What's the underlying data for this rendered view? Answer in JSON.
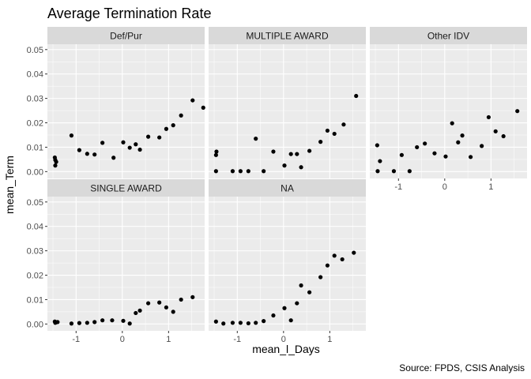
{
  "chart_data": {
    "type": "scatter",
    "title": "Average Termination Rate",
    "xlabel": "mean_l_Days",
    "ylabel": "mean_Term",
    "caption": "Source: FPDS, CSIS Analysis",
    "xlim": [
      -1.62,
      1.78
    ],
    "ylim": [
      -0.0028,
      0.0522
    ],
    "x_ticks": [
      -1,
      0,
      1
    ],
    "x_tick_labels": [
      "-1",
      "0",
      "1"
    ],
    "y_ticks": [
      0.0,
      0.01,
      0.02,
      0.03,
      0.04,
      0.05
    ],
    "y_tick_labels": [
      "0.00",
      "0.01",
      "0.02",
      "0.03",
      "0.04",
      "0.05"
    ],
    "grid": true,
    "point_color": "#000000",
    "panel_background": "#ebebeb",
    "strip_background": "#d9d9d9",
    "facets": [
      {
        "name": "Def/Pur",
        "points": [
          {
            "x": -1.46,
            "y": 0.0058
          },
          {
            "x": -1.45,
            "y": 0.0048
          },
          {
            "x": -1.45,
            "y": 0.0025
          },
          {
            "x": -1.43,
            "y": 0.004
          },
          {
            "x": -1.1,
            "y": 0.0148
          },
          {
            "x": -0.93,
            "y": 0.0088
          },
          {
            "x": -0.76,
            "y": 0.0073
          },
          {
            "x": -0.6,
            "y": 0.007
          },
          {
            "x": -0.43,
            "y": 0.0118
          },
          {
            "x": -0.19,
            "y": 0.0057
          },
          {
            "x": 0.02,
            "y": 0.012
          },
          {
            "x": 0.16,
            "y": 0.0098
          },
          {
            "x": 0.29,
            "y": 0.0112
          },
          {
            "x": 0.38,
            "y": 0.009
          },
          {
            "x": 0.56,
            "y": 0.0143
          },
          {
            "x": 0.8,
            "y": 0.014
          },
          {
            "x": 0.95,
            "y": 0.0175
          },
          {
            "x": 1.1,
            "y": 0.019
          },
          {
            "x": 1.27,
            "y": 0.023
          },
          {
            "x": 1.52,
            "y": 0.0292
          },
          {
            "x": 1.75,
            "y": 0.0262
          }
        ]
      },
      {
        "name": "MULTIPLE AWARD",
        "points": [
          {
            "x": -1.46,
            "y": 0.0068
          },
          {
            "x": -1.45,
            "y": 0.0082
          },
          {
            "x": -1.46,
            "y": 0.0002
          },
          {
            "x": -1.1,
            "y": 0.0002
          },
          {
            "x": -0.93,
            "y": 0.0002
          },
          {
            "x": -0.76,
            "y": 0.0002
          },
          {
            "x": -0.6,
            "y": 0.0135
          },
          {
            "x": -0.43,
            "y": 0.0002
          },
          {
            "x": -0.22,
            "y": 0.0082
          },
          {
            "x": 0.02,
            "y": 0.0025
          },
          {
            "x": 0.16,
            "y": 0.0072
          },
          {
            "x": 0.29,
            "y": 0.0072
          },
          {
            "x": 0.38,
            "y": 0.0018
          },
          {
            "x": 0.56,
            "y": 0.0085
          },
          {
            "x": 0.8,
            "y": 0.0122
          },
          {
            "x": 0.95,
            "y": 0.0168
          },
          {
            "x": 1.1,
            "y": 0.0155
          },
          {
            "x": 1.3,
            "y": 0.0193
          },
          {
            "x": 1.57,
            "y": 0.031
          }
        ]
      },
      {
        "name": "Other IDV",
        "points": [
          {
            "x": -1.46,
            "y": 0.0108
          },
          {
            "x": -1.45,
            "y": 0.0002
          },
          {
            "x": -1.4,
            "y": 0.0043
          },
          {
            "x": -1.1,
            "y": 0.0002
          },
          {
            "x": -0.93,
            "y": 0.0068
          },
          {
            "x": -0.76,
            "y": 0.0002
          },
          {
            "x": -0.6,
            "y": 0.01
          },
          {
            "x": -0.43,
            "y": 0.0115
          },
          {
            "x": -0.22,
            "y": 0.0075
          },
          {
            "x": 0.02,
            "y": 0.0062
          },
          {
            "x": 0.16,
            "y": 0.0198
          },
          {
            "x": 0.29,
            "y": 0.012
          },
          {
            "x": 0.38,
            "y": 0.0148
          },
          {
            "x": 0.56,
            "y": 0.006
          },
          {
            "x": 0.8,
            "y": 0.0105
          },
          {
            "x": 0.95,
            "y": 0.0223
          },
          {
            "x": 1.1,
            "y": 0.0165
          },
          {
            "x": 1.27,
            "y": 0.0145
          },
          {
            "x": 1.57,
            "y": 0.0248
          }
        ]
      },
      {
        "name": "SINGLE AWARD",
        "points": [
          {
            "x": -1.46,
            "y": 0.001
          },
          {
            "x": -1.45,
            "y": 0.0005
          },
          {
            "x": -1.4,
            "y": 0.0008
          },
          {
            "x": -1.1,
            "y": 0.0002
          },
          {
            "x": -0.93,
            "y": 0.0004
          },
          {
            "x": -0.76,
            "y": 0.0005
          },
          {
            "x": -0.6,
            "y": 0.0008
          },
          {
            "x": -0.43,
            "y": 0.0015
          },
          {
            "x": -0.22,
            "y": 0.0015
          },
          {
            "x": 0.02,
            "y": 0.0013
          },
          {
            "x": 0.16,
            "y": 0.0002
          },
          {
            "x": 0.29,
            "y": 0.0045
          },
          {
            "x": 0.38,
            "y": 0.0055
          },
          {
            "x": 0.56,
            "y": 0.0085
          },
          {
            "x": 0.8,
            "y": 0.0088
          },
          {
            "x": 0.95,
            "y": 0.0068
          },
          {
            "x": 1.1,
            "y": 0.005
          },
          {
            "x": 1.27,
            "y": 0.01
          },
          {
            "x": 1.52,
            "y": 0.011
          }
        ]
      },
      {
        "name": "NA",
        "points": [
          {
            "x": -1.46,
            "y": 0.001
          },
          {
            "x": -1.3,
            "y": 0.0002
          },
          {
            "x": -1.1,
            "y": 0.0005
          },
          {
            "x": -0.93,
            "y": 0.0005
          },
          {
            "x": -0.76,
            "y": 0.0003
          },
          {
            "x": -0.6,
            "y": 0.0005
          },
          {
            "x": -0.43,
            "y": 0.0012
          },
          {
            "x": -0.22,
            "y": 0.0035
          },
          {
            "x": 0.02,
            "y": 0.0065
          },
          {
            "x": 0.16,
            "y": 0.0015
          },
          {
            "x": 0.29,
            "y": 0.0085
          },
          {
            "x": 0.38,
            "y": 0.0158
          },
          {
            "x": 0.56,
            "y": 0.013
          },
          {
            "x": 0.8,
            "y": 0.0192
          },
          {
            "x": 0.95,
            "y": 0.024
          },
          {
            "x": 1.1,
            "y": 0.028
          },
          {
            "x": 1.27,
            "y": 0.0265
          },
          {
            "x": 1.52,
            "y": 0.0292
          }
        ]
      }
    ]
  }
}
